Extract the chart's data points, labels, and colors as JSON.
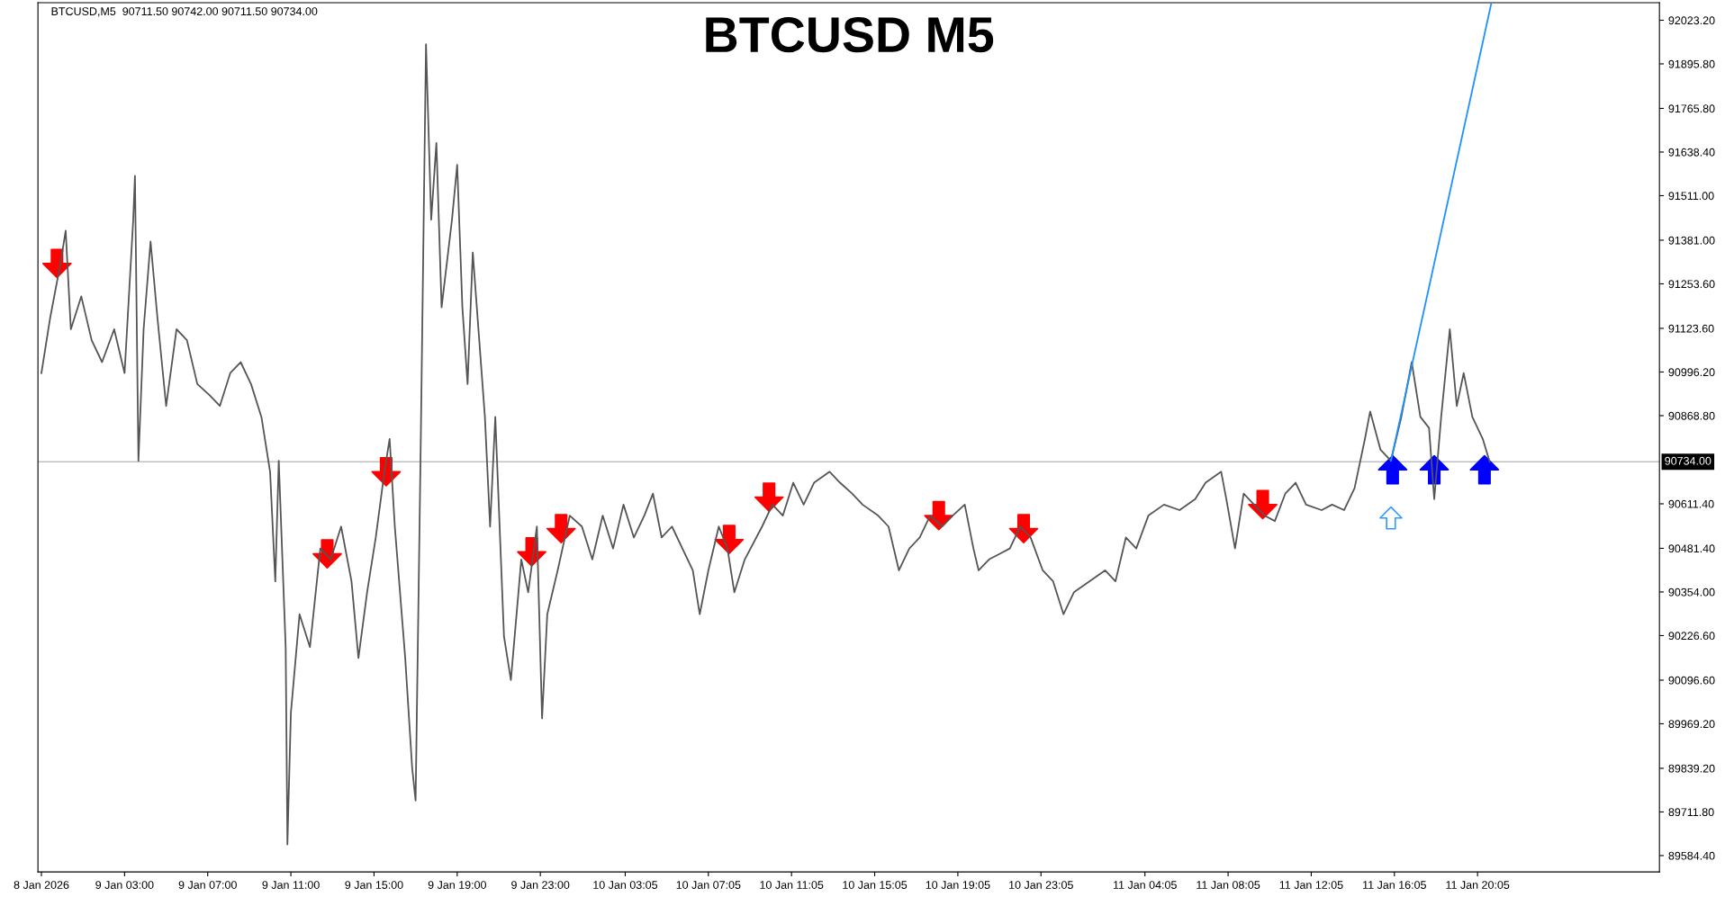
{
  "chart_data": {
    "type": "line",
    "title": "BTCUSD M5",
    "annotations": [
      "BTCUSD,M5  90711.50 90742.00 90711.50 90734.00"
    ],
    "xlim": [
      "2026-01-08T22:50",
      "2026-01-12T04:50"
    ],
    "ylim": [
      89536.8,
      92074.4
    ],
    "xticks": [
      {
        "value": "2026-01-08T23:00",
        "label": "8 Jan 2026"
      },
      {
        "value": "2026-01-09T03:00",
        "label": "9 Jan 03:00"
      },
      {
        "value": "2026-01-09T07:00",
        "label": "9 Jan 07:00"
      },
      {
        "value": "2026-01-09T11:00",
        "label": "9 Jan 11:00"
      },
      {
        "value": "2026-01-09T15:00",
        "label": "9 Jan 15:00"
      },
      {
        "value": "2026-01-09T19:00",
        "label": "9 Jan 19:00"
      },
      {
        "value": "2026-01-09T23:00",
        "label": "9 Jan 23:00"
      },
      {
        "value": "2026-01-10T03:05",
        "label": "10 Jan 03:05"
      },
      {
        "value": "2026-01-10T07:05",
        "label": "10 Jan 07:05"
      },
      {
        "value": "2026-01-10T11:05",
        "label": "10 Jan 11:05"
      },
      {
        "value": "2026-01-10T15:05",
        "label": "10 Jan 15:05"
      },
      {
        "value": "2026-01-10T19:05",
        "label": "10 Jan 19:05"
      },
      {
        "value": "2026-01-10T23:05",
        "label": "10 Jan 23:05"
      },
      {
        "value": "2026-01-11T04:05",
        "label": "11 Jan 04:05"
      },
      {
        "value": "2026-01-11T08:05",
        "label": "11 Jan 08:05"
      },
      {
        "value": "2026-01-11T12:05",
        "label": "11 Jan 12:05"
      },
      {
        "value": "2026-01-11T16:05",
        "label": "11 Jan 16:05"
      },
      {
        "value": "2026-01-11T20:05",
        "label": "11 Jan 20:05"
      }
    ],
    "yticks": [
      {
        "value": 89584.4,
        "label": "89584.40"
      },
      {
        "value": 89711.8,
        "label": "89711.80"
      },
      {
        "value": 89839.2,
        "label": "89839.20"
      },
      {
        "value": 89969.2,
        "label": "89969.20"
      },
      {
        "value": 90096.6,
        "label": "90096.60"
      },
      {
        "value": 90226.6,
        "label": "90226.60"
      },
      {
        "value": 90354.0,
        "label": "90354.00"
      },
      {
        "value": 90481.4,
        "label": "90481.40"
      },
      {
        "value": 90611.4,
        "label": "90611.40"
      },
      {
        "value": 90868.8,
        "label": "90868.80"
      },
      {
        "value": 90996.2,
        "label": "90996.20"
      },
      {
        "value": 91123.6,
        "label": "91123.60"
      },
      {
        "value": 91253.6,
        "label": "91253.60"
      },
      {
        "value": 91381.0,
        "label": "91381.00"
      },
      {
        "value": 91511.0,
        "label": "91511.00"
      },
      {
        "value": 91638.4,
        "label": "91638.40"
      },
      {
        "value": 91765.8,
        "label": "91765.80"
      },
      {
        "value": 91895.8,
        "label": "91895.80"
      },
      {
        "value": 92023.2,
        "label": "92023.20"
      }
    ],
    "grid": false,
    "legend": false,
    "ref_lines": [
      {
        "axis": "y",
        "value": 90734,
        "label": "90734.00",
        "color": "#c0c0c0",
        "line_style": "solid"
      }
    ],
    "series": [
      {
        "color": "#555555",
        "marker": "none",
        "line_style": "solid",
        "x": [
          "2026-01-08T23:00",
          "2026-01-08T23:25",
          "2026-01-08T23:55",
          "2026-01-09T00:10",
          "2026-01-09T00:25",
          "2026-01-09T00:55",
          "2026-01-09T01:25",
          "2026-01-09T01:55",
          "2026-01-09T02:30",
          "2026-01-09T03:00",
          "2026-01-09T03:25",
          "2026-01-09T03:30",
          "2026-01-09T03:40",
          "2026-01-09T03:55",
          "2026-01-09T04:15",
          "2026-01-09T04:35",
          "2026-01-09T05:00",
          "2026-01-09T05:30",
          "2026-01-09T06:00",
          "2026-01-09T06:30",
          "2026-01-09T07:05",
          "2026-01-09T07:35",
          "2026-01-09T08:05",
          "2026-01-09T08:35",
          "2026-01-09T09:05",
          "2026-01-09T09:35",
          "2026-01-09T10:00",
          "2026-01-09T10:15",
          "2026-01-09T10:25",
          "2026-01-09T10:45",
          "2026-01-09T10:50",
          "2026-01-09T11:00",
          "2026-01-09T11:25",
          "2026-01-09T11:55",
          "2026-01-09T12:25",
          "2026-01-09T12:55",
          "2026-01-09T13:25",
          "2026-01-09T13:55",
          "2026-01-09T14:15",
          "2026-01-09T14:40",
          "2026-01-09T15:05",
          "2026-01-09T15:30",
          "2026-01-09T15:45",
          "2026-01-09T16:00",
          "2026-01-09T16:30",
          "2026-01-09T16:50",
          "2026-01-09T17:00",
          "2026-01-09T17:15",
          "2026-01-09T17:30",
          "2026-01-09T17:45",
          "2026-01-09T18:00",
          "2026-01-09T18:15",
          "2026-01-09T18:45",
          "2026-01-09T19:00",
          "2026-01-09T19:15",
          "2026-01-09T19:30",
          "2026-01-09T19:45",
          "2026-01-09T20:20",
          "2026-01-09T20:35",
          "2026-01-09T20:50",
          "2026-01-09T21:15",
          "2026-01-09T21:35",
          "2026-01-09T22:05",
          "2026-01-09T22:25",
          "2026-01-09T22:50",
          "2026-01-09T23:05",
          "2026-01-09T23:20",
          "2026-01-09T23:50",
          "2026-01-10T00:25",
          "2026-01-10T01:00",
          "2026-01-10T01:30",
          "2026-01-10T02:00",
          "2026-01-10T02:30",
          "2026-01-10T03:00",
          "2026-01-10T03:30",
          "2026-01-10T04:00",
          "2026-01-10T04:25",
          "2026-01-10T04:50",
          "2026-01-10T05:20",
          "2026-01-10T05:50",
          "2026-01-10T06:20",
          "2026-01-10T06:40",
          "2026-01-10T07:05",
          "2026-01-10T07:35",
          "2026-01-10T08:00",
          "2026-01-10T08:20",
          "2026-01-10T08:50",
          "2026-01-10T09:40",
          "2026-01-10T10:10",
          "2026-01-10T10:40",
          "2026-01-10T11:10",
          "2026-01-10T11:40",
          "2026-01-10T12:10",
          "2026-01-10T12:55",
          "2026-01-10T13:25",
          "2026-01-10T14:00",
          "2026-01-10T14:30",
          "2026-01-10T15:15",
          "2026-01-10T15:45",
          "2026-01-10T16:15",
          "2026-01-10T16:45",
          "2026-01-10T17:15",
          "2026-01-10T17:45",
          "2026-01-10T18:20",
          "2026-01-10T18:50",
          "2026-01-10T19:25",
          "2026-01-10T19:50",
          "2026-01-10T20:05",
          "2026-01-10T20:35",
          "2026-01-10T21:05",
          "2026-01-10T21:35",
          "2026-01-10T22:05",
          "2026-01-10T22:35",
          "2026-01-10T23:10",
          "2026-01-10T23:40",
          "2026-01-11T00:10",
          "2026-01-11T00:40",
          "2026-01-11T02:10",
          "2026-01-11T02:40",
          "2026-01-11T03:10",
          "2026-01-11T03:40",
          "2026-01-11T04:15",
          "2026-01-11T05:00",
          "2026-01-11T05:45",
          "2026-01-11T06:30",
          "2026-01-11T07:00",
          "2026-01-11T07:45",
          "2026-01-11T08:00",
          "2026-01-11T08:25",
          "2026-01-11T08:50",
          "2026-01-11T09:20",
          "2026-01-11T09:50",
          "2026-01-11T10:20",
          "2026-01-11T10:50",
          "2026-01-11T11:20",
          "2026-01-11T11:50",
          "2026-01-11T12:35",
          "2026-01-11T13:05",
          "2026-01-11T13:40",
          "2026-01-11T14:10",
          "2026-01-11T14:40",
          "2026-01-11T14:55",
          "2026-01-11T15:25",
          "2026-01-11T15:55",
          "2026-01-11T16:25",
          "2026-01-11T16:55",
          "2026-01-11T17:20",
          "2026-01-11T17:45",
          "2026-01-11T18:00",
          "2026-01-11T18:20",
          "2026-01-11T18:45",
          "2026-01-11T19:05",
          "2026-01-11T19:25",
          "2026-01-11T19:50",
          "2026-01-11T20:20",
          "2026-01-11T20:40"
        ],
        "values": [
          90993,
          91153,
          91313,
          91409,
          91121,
          91217,
          91089,
          91025,
          91121,
          90993,
          91441,
          91569,
          90737,
          91121,
          91377,
          91153,
          90897,
          91121,
          91089,
          90961,
          90929,
          90897,
          90993,
          91025,
          90961,
          90865,
          90705,
          90385,
          90737,
          90193,
          89617,
          90001,
          90289,
          90193,
          90481,
          90449,
          90545,
          90385,
          90161,
          90353,
          90513,
          90705,
          90801,
          90545,
          90161,
          89841,
          89745,
          90801,
          91953,
          91441,
          91665,
          91185,
          91441,
          91601,
          91185,
          90961,
          91345,
          90865,
          90545,
          90865,
          90225,
          90097,
          90449,
          90353,
          90545,
          89985,
          90289,
          90417,
          90577,
          90545,
          90449,
          90577,
          90481,
          90609,
          90513,
          90577,
          90641,
          90513,
          90545,
          90481,
          90417,
          90289,
          90417,
          90545,
          90481,
          90353,
          90449,
          90545,
          90609,
          90577,
          90673,
          90609,
          90673,
          90705,
          90673,
          90641,
          90609,
          90577,
          90545,
          90417,
          90481,
          90513,
          90577,
          90545,
          90577,
          90609,
          90481,
          90417,
          90449,
          90465,
          90481,
          90545,
          90513,
          90417,
          90385,
          90289,
          90353,
          90417,
          90385,
          90513,
          90481,
          90577,
          90609,
          90593,
          90625,
          90673,
          90705,
          90625,
          90481,
          90641,
          90609,
          90577,
          90561,
          90641,
          90673,
          90609,
          90593,
          90609,
          90593,
          90657,
          90801,
          90881,
          90769,
          90737,
          90865,
          91025,
          90865,
          90833,
          90625,
          90865,
          91121,
          90897,
          90993,
          90865,
          90801,
          90734
        ]
      },
      {
        "type": "line",
        "color": "#1e90ff",
        "marker": "none",
        "line_style": "solid",
        "x": [
          "2026-01-11T15:55",
          "2026-01-11T20:45"
        ],
        "values": [
          90737,
          92074
        ]
      },
      {
        "type": "scatter",
        "color": "#ff0000",
        "x": [
          "2026-01-08T23:45",
          "2026-01-09T12:45",
          "2026-01-09T15:35",
          "2026-01-09T22:35",
          "2026-01-10T00:00",
          "2026-01-10T08:05",
          "2026-01-10T10:00",
          "2026-01-10T18:10",
          "2026-01-10T22:15",
          "2026-01-11T09:45"
        ],
        "values": [
          91313,
          90465,
          90705,
          90471,
          90539,
          90507,
          90631,
          90577,
          90539,
          90609
        ]
      },
      {
        "type": "scatter",
        "color": "#0000ff",
        "x": [
          "2026-01-11T16:00",
          "2026-01-11T18:00",
          "2026-01-11T20:25"
        ],
        "values": [
          90711,
          90711,
          90711
        ]
      },
      {
        "type": "scatter",
        "color": "#3399ff",
        "x": [
          "2026-01-11T15:55"
        ],
        "values": [
          90570
        ]
      }
    ]
  }
}
